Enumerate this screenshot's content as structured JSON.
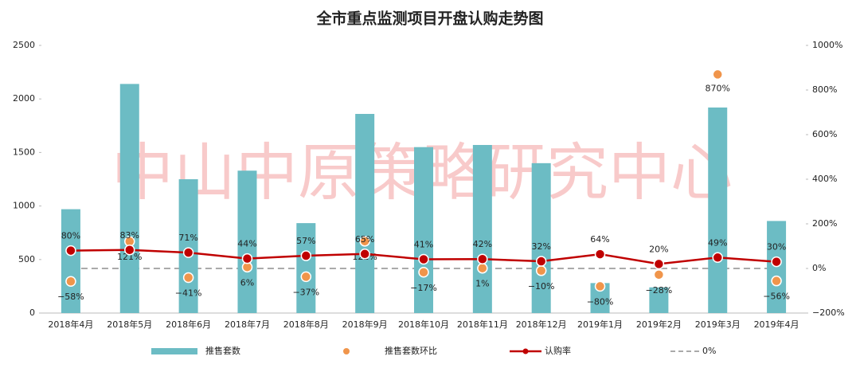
{
  "chart_data": {
    "type": "combo",
    "title": "全市重点监测项目开盘认购走势图",
    "watermark": "中山中原策略研究中心",
    "categories": [
      "2018年4月",
      "2018年5月",
      "2018年6月",
      "2018年7月",
      "2018年8月",
      "2018年9月",
      "2018年10月",
      "2018年11月",
      "2018年12月",
      "2019年1月",
      "2019年2月",
      "2019年3月",
      "2019年4月"
    ],
    "series": [
      {
        "name": "推售套数",
        "type": "bar",
        "color": "#6cbcc4",
        "values": [
          970,
          2140,
          1250,
          1330,
          840,
          1860,
          1550,
          1570,
          1400,
          280,
          240,
          1920,
          860
        ]
      },
      {
        "name": "推售套数环比",
        "type": "scatter",
        "axis": "y2",
        "color": "#f0954b",
        "values": [
          -58,
          121,
          -41,
          6,
          -37,
          122,
          -17,
          1,
          -10,
          -80,
          -28,
          870,
          -56
        ],
        "value_labels": [
          "−58%",
          "121%",
          "−41%",
          "6%",
          "−37%",
          "122%",
          "−17%",
          "1%",
          "−10%",
          "−80%",
          "−28%",
          "870%",
          "−56%"
        ]
      },
      {
        "name": "认购率",
        "type": "line",
        "axis": "y2",
        "color": "#c00000",
        "values": [
          80,
          83,
          71,
          44,
          57,
          65,
          41,
          42,
          32,
          64,
          20,
          49,
          30
        ],
        "value_labels": [
          "80%",
          "83%",
          "71%",
          "44%",
          "57%",
          "65%",
          "41%",
          "42%",
          "32%",
          "64%",
          "20%",
          "49%",
          "30%"
        ]
      }
    ],
    "reference_line": {
      "name": "0%",
      "value": 0,
      "axis": "y2",
      "color": "#aaaaaa"
    },
    "ylim": [
      0,
      2500
    ],
    "yticks": [
      0,
      500,
      1000,
      1500,
      2000,
      2500
    ],
    "y2lim": [
      -200,
      1000
    ],
    "y2ticks": [
      {
        "value": -200,
        "label": "−200%"
      },
      {
        "value": 0,
        "label": "0%"
      },
      {
        "value": 200,
        "label": "200%"
      },
      {
        "value": 400,
        "label": "400%"
      },
      {
        "value": 600,
        "label": "600%"
      },
      {
        "value": 800,
        "label": "800%"
      },
      {
        "value": 1000,
        "label": "1000%"
      }
    ]
  }
}
